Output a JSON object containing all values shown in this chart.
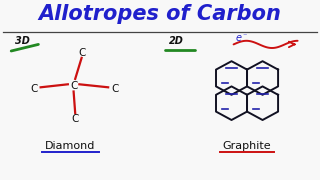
{
  "title": "Allotropes of Carbon",
  "title_color": "#2020CC",
  "title_fontsize": 15,
  "background_color": "#F8F8F8",
  "diamond_label": "Diamond",
  "graphite_label": "Graphite",
  "label_color": "#111111",
  "label_fontsize": 8,
  "dim_3d_text": "3D",
  "dim_2d_text": "2D",
  "dim_color": "#111111",
  "dim_fontsize": 7,
  "bond_color": "#CC1111",
  "graphite_bond_color": "#111122",
  "graphite_dbl_color": "#2222AA",
  "electron_color": "#CC1111",
  "dim_line_color": "#228822",
  "e_text": "e",
  "e_sup": "⁻",
  "e_color": "#2222CC",
  "diamond_ul_color": "#2222CC",
  "graphite_ul_color": "#CC1111"
}
